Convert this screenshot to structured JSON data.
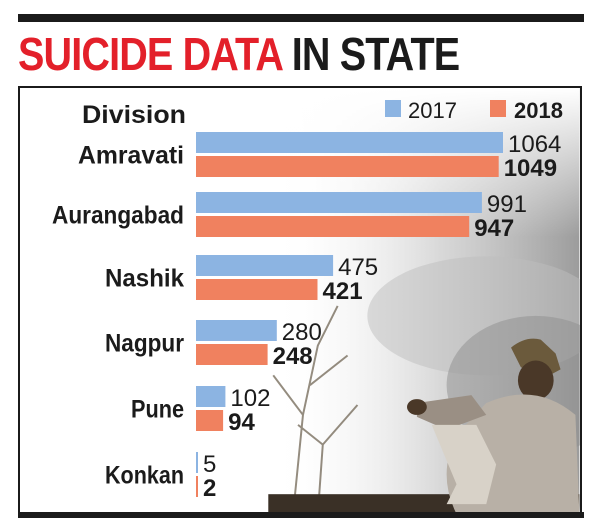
{
  "headline": {
    "part1": "SUICIDE DATA",
    "part2": "IN STATE"
  },
  "colors": {
    "accent_red": "#e3202a",
    "series_2017": "#8cb4e2",
    "series_2018": "#f0815f",
    "text": "#1b1b1b"
  },
  "chart_data": {
    "type": "bar",
    "orientation": "horizontal",
    "title": "SUICIDE DATA IN STATE",
    "category_header": "Division",
    "categories": [
      "Amravati",
      "Aurangabad",
      "Nashik",
      "Nagpur",
      "Pune",
      "Konkan"
    ],
    "series": [
      {
        "name": "2017",
        "values": [
          1064,
          991,
          475,
          280,
          102,
          5
        ]
      },
      {
        "name": "2018",
        "values": [
          1049,
          947,
          421,
          248,
          94,
          2
        ]
      }
    ],
    "legend_position": "top-right",
    "value_labels": true,
    "grid": false,
    "xlim": [
      0,
      1064
    ]
  }
}
